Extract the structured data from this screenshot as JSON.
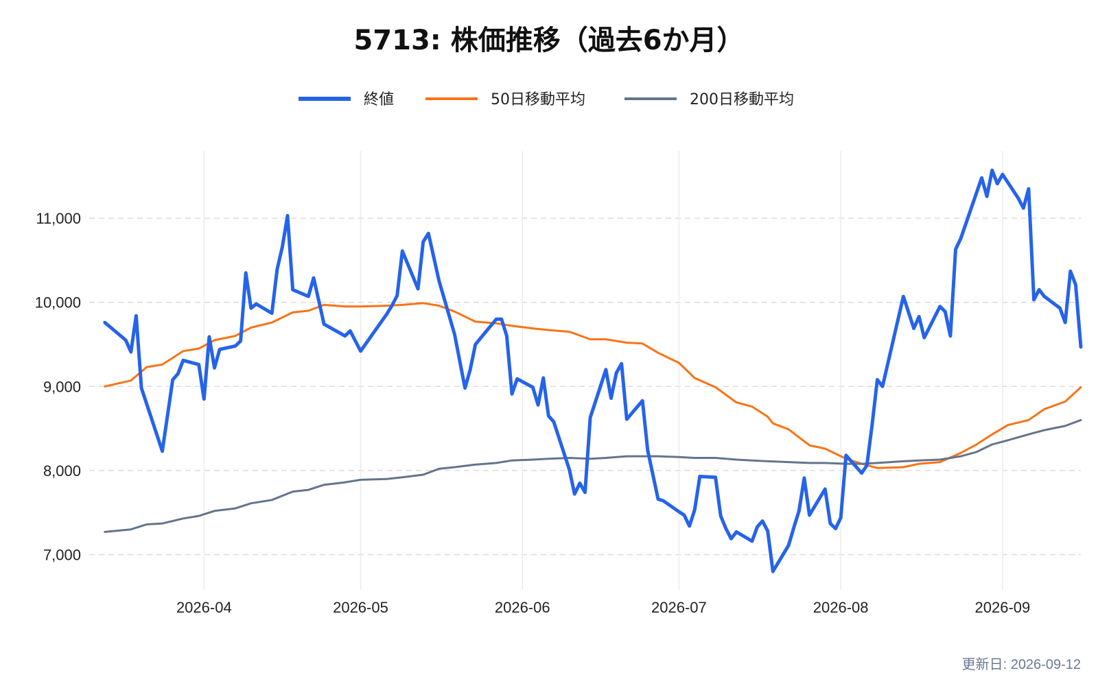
{
  "chart_data": {
    "type": "line",
    "title": "5713: 株価推移（過去6か月）",
    "footer": "更新日: 2026-09-12",
    "xlabel": "",
    "ylabel": "",
    "ylim": [
      6580,
      11800
    ],
    "xlim": [
      "2026-03-10",
      "2026-09-16"
    ],
    "grid": "horizontal dashed and vertical at month ticks",
    "legend_position": "top-center",
    "x_ticks": [
      "2026-04-01",
      "2026-05-01",
      "2026-06-01",
      "2026-07-01",
      "2026-08-01",
      "2026-09-01"
    ],
    "x_tick_labels": [
      "2026-04",
      "2026-05",
      "2026-06",
      "2026-07",
      "2026-08",
      "2026-09"
    ],
    "y_ticks": [
      7000,
      8000,
      9000,
      10000,
      11000
    ],
    "y_tick_labels": [
      "7,000",
      "8,000",
      "9,000",
      "10,000",
      "11,000"
    ],
    "series": [
      {
        "name": "終値",
        "color": "#2563eb",
        "width": 5,
        "points": [
          [
            "2026-03-13",
            9760
          ],
          [
            "2026-03-17",
            9550
          ],
          [
            "2026-03-18",
            9410
          ],
          [
            "2026-03-19",
            9840
          ],
          [
            "2026-03-20",
            8980
          ],
          [
            "2026-03-24",
            8230
          ],
          [
            "2026-03-26",
            9080
          ],
          [
            "2026-03-27",
            9150
          ],
          [
            "2026-03-28",
            9310
          ],
          [
            "2026-03-31",
            9260
          ],
          [
            "2026-04-01",
            8850
          ],
          [
            "2026-04-02",
            9590
          ],
          [
            "2026-04-03",
            9220
          ],
          [
            "2026-04-04",
            9440
          ],
          [
            "2026-04-07",
            9480
          ],
          [
            "2026-04-08",
            9540
          ],
          [
            "2026-04-09",
            10350
          ],
          [
            "2026-04-10",
            9930
          ],
          [
            "2026-04-11",
            9980
          ],
          [
            "2026-04-14",
            9870
          ],
          [
            "2026-04-15",
            10390
          ],
          [
            "2026-04-16",
            10660
          ],
          [
            "2026-04-17",
            11030
          ],
          [
            "2026-04-18",
            10150
          ],
          [
            "2026-04-21",
            10070
          ],
          [
            "2026-04-22",
            10290
          ],
          [
            "2026-04-24",
            9740
          ],
          [
            "2026-04-28",
            9600
          ],
          [
            "2026-04-29",
            9660
          ],
          [
            "2026-05-01",
            9420
          ],
          [
            "2026-05-06",
            9860
          ],
          [
            "2026-05-07",
            9960
          ],
          [
            "2026-05-08",
            10080
          ],
          [
            "2026-05-09",
            10610
          ],
          [
            "2026-05-12",
            10160
          ],
          [
            "2026-05-13",
            10720
          ],
          [
            "2026-05-14",
            10820
          ],
          [
            "2026-05-16",
            10260
          ],
          [
            "2026-05-19",
            9620
          ],
          [
            "2026-05-21",
            8980
          ],
          [
            "2026-05-22",
            9200
          ],
          [
            "2026-05-23",
            9500
          ],
          [
            "2026-05-27",
            9800
          ],
          [
            "2026-05-28",
            9800
          ],
          [
            "2026-05-29",
            9600
          ],
          [
            "2026-05-30",
            8910
          ],
          [
            "2026-05-31",
            9090
          ],
          [
            "2026-06-03",
            8990
          ],
          [
            "2026-06-04",
            8780
          ],
          [
            "2026-06-05",
            9100
          ],
          [
            "2026-06-06",
            8650
          ],
          [
            "2026-06-07",
            8580
          ],
          [
            "2026-06-10",
            8010
          ],
          [
            "2026-06-11",
            7720
          ],
          [
            "2026-06-12",
            7850
          ],
          [
            "2026-06-13",
            7740
          ],
          [
            "2026-06-14",
            8630
          ],
          [
            "2026-06-17",
            9200
          ],
          [
            "2026-06-18",
            8860
          ],
          [
            "2026-06-19",
            9160
          ],
          [
            "2026-06-20",
            9270
          ],
          [
            "2026-06-21",
            8610
          ],
          [
            "2026-06-24",
            8830
          ],
          [
            "2026-06-25",
            8240
          ],
          [
            "2026-06-27",
            7660
          ],
          [
            "2026-06-28",
            7640
          ],
          [
            "2026-07-01",
            7510
          ],
          [
            "2026-07-02",
            7470
          ],
          [
            "2026-07-03",
            7340
          ],
          [
            "2026-07-04",
            7530
          ],
          [
            "2026-07-05",
            7930
          ],
          [
            "2026-07-08",
            7920
          ],
          [
            "2026-07-09",
            7460
          ],
          [
            "2026-07-10",
            7310
          ],
          [
            "2026-07-11",
            7190
          ],
          [
            "2026-07-12",
            7270
          ],
          [
            "2026-07-15",
            7160
          ],
          [
            "2026-07-16",
            7330
          ],
          [
            "2026-07-17",
            7400
          ],
          [
            "2026-07-18",
            7280
          ],
          [
            "2026-07-19",
            6800
          ],
          [
            "2026-07-22",
            7110
          ],
          [
            "2026-07-23",
            7320
          ],
          [
            "2026-07-24",
            7520
          ],
          [
            "2026-07-25",
            7910
          ],
          [
            "2026-07-26",
            7470
          ],
          [
            "2026-07-29",
            7780
          ],
          [
            "2026-07-30",
            7370
          ],
          [
            "2026-07-31",
            7310
          ],
          [
            "2026-08-01",
            7440
          ],
          [
            "2026-08-02",
            8180
          ],
          [
            "2026-08-05",
            7970
          ],
          [
            "2026-08-06",
            8060
          ],
          [
            "2026-08-07",
            8540
          ],
          [
            "2026-08-08",
            9080
          ],
          [
            "2026-08-09",
            9000
          ],
          [
            "2026-08-13",
            10070
          ],
          [
            "2026-08-15",
            9690
          ],
          [
            "2026-08-16",
            9830
          ],
          [
            "2026-08-17",
            9580
          ],
          [
            "2026-08-20",
            9950
          ],
          [
            "2026-08-21",
            9890
          ],
          [
            "2026-08-22",
            9600
          ],
          [
            "2026-08-23",
            10630
          ],
          [
            "2026-08-24",
            10760
          ],
          [
            "2026-08-28",
            11480
          ],
          [
            "2026-08-29",
            11260
          ],
          [
            "2026-08-30",
            11570
          ],
          [
            "2026-08-31",
            11410
          ],
          [
            "2026-09-01",
            11520
          ],
          [
            "2026-09-04",
            11240
          ],
          [
            "2026-09-05",
            11120
          ],
          [
            "2026-09-06",
            11350
          ],
          [
            "2026-09-07",
            10030
          ],
          [
            "2026-09-08",
            10150
          ],
          [
            "2026-09-09",
            10070
          ],
          [
            "2026-09-12",
            9930
          ],
          [
            "2026-09-13",
            9760
          ],
          [
            "2026-09-14",
            10370
          ],
          [
            "2026-09-15",
            10210
          ],
          [
            "2026-09-16",
            9470
          ]
        ]
      },
      {
        "name": "50日移動平均",
        "color": "#f97316",
        "width": 3,
        "points": [
          [
            "2026-03-13",
            9000
          ],
          [
            "2026-03-18",
            9070
          ],
          [
            "2026-03-21",
            9230
          ],
          [
            "2026-03-24",
            9260
          ],
          [
            "2026-03-28",
            9420
          ],
          [
            "2026-03-31",
            9450
          ],
          [
            "2026-04-03",
            9550
          ],
          [
            "2026-04-07",
            9600
          ],
          [
            "2026-04-10",
            9700
          ],
          [
            "2026-04-14",
            9760
          ],
          [
            "2026-04-18",
            9880
          ],
          [
            "2026-04-21",
            9900
          ],
          [
            "2026-04-24",
            9970
          ],
          [
            "2026-04-28",
            9950
          ],
          [
            "2026-05-01",
            9950
          ],
          [
            "2026-05-06",
            9960
          ],
          [
            "2026-05-09",
            9970
          ],
          [
            "2026-05-13",
            9990
          ],
          [
            "2026-05-16",
            9960
          ],
          [
            "2026-05-19",
            9890
          ],
          [
            "2026-05-23",
            9770
          ],
          [
            "2026-05-27",
            9750
          ],
          [
            "2026-05-30",
            9720
          ],
          [
            "2026-06-03",
            9690
          ],
          [
            "2026-06-06",
            9670
          ],
          [
            "2026-06-10",
            9650
          ],
          [
            "2026-06-14",
            9560
          ],
          [
            "2026-06-17",
            9560
          ],
          [
            "2026-06-21",
            9520
          ],
          [
            "2026-06-24",
            9510
          ],
          [
            "2026-06-27",
            9400
          ],
          [
            "2026-07-01",
            9280
          ],
          [
            "2026-07-04",
            9100
          ],
          [
            "2026-07-08",
            8990
          ],
          [
            "2026-07-12",
            8810
          ],
          [
            "2026-07-15",
            8760
          ],
          [
            "2026-07-18",
            8640
          ],
          [
            "2026-07-19",
            8560
          ],
          [
            "2026-07-22",
            8490
          ],
          [
            "2026-07-26",
            8300
          ],
          [
            "2026-07-29",
            8260
          ],
          [
            "2026-08-02",
            8140
          ],
          [
            "2026-08-05",
            8080
          ],
          [
            "2026-08-08",
            8030
          ],
          [
            "2026-08-13",
            8040
          ],
          [
            "2026-08-16",
            8080
          ],
          [
            "2026-08-20",
            8100
          ],
          [
            "2026-08-24",
            8210
          ],
          [
            "2026-08-27",
            8310
          ],
          [
            "2026-08-30",
            8430
          ],
          [
            "2026-09-02",
            8540
          ],
          [
            "2026-09-06",
            8600
          ],
          [
            "2026-09-09",
            8730
          ],
          [
            "2026-09-13",
            8820
          ],
          [
            "2026-09-16",
            8990
          ]
        ]
      },
      {
        "name": "200日移動平均",
        "color": "#64748b",
        "width": 3,
        "points": [
          [
            "2026-03-13",
            7270
          ],
          [
            "2026-03-18",
            7300
          ],
          [
            "2026-03-21",
            7360
          ],
          [
            "2026-03-24",
            7370
          ],
          [
            "2026-03-28",
            7430
          ],
          [
            "2026-03-31",
            7460
          ],
          [
            "2026-04-03",
            7520
          ],
          [
            "2026-04-07",
            7550
          ],
          [
            "2026-04-10",
            7610
          ],
          [
            "2026-04-14",
            7650
          ],
          [
            "2026-04-18",
            7750
          ],
          [
            "2026-04-21",
            7770
          ],
          [
            "2026-04-24",
            7830
          ],
          [
            "2026-04-28",
            7860
          ],
          [
            "2026-05-01",
            7890
          ],
          [
            "2026-05-06",
            7900
          ],
          [
            "2026-05-09",
            7920
          ],
          [
            "2026-05-13",
            7950
          ],
          [
            "2026-05-16",
            8020
          ],
          [
            "2026-05-19",
            8040
          ],
          [
            "2026-05-23",
            8070
          ],
          [
            "2026-05-27",
            8090
          ],
          [
            "2026-05-30",
            8120
          ],
          [
            "2026-06-03",
            8130
          ],
          [
            "2026-06-06",
            8140
          ],
          [
            "2026-06-10",
            8150
          ],
          [
            "2026-06-14",
            8140
          ],
          [
            "2026-06-17",
            8150
          ],
          [
            "2026-06-21",
            8170
          ],
          [
            "2026-06-24",
            8170
          ],
          [
            "2026-06-27",
            8170
          ],
          [
            "2026-07-01",
            8160
          ],
          [
            "2026-07-04",
            8150
          ],
          [
            "2026-07-08",
            8150
          ],
          [
            "2026-07-12",
            8130
          ],
          [
            "2026-07-15",
            8120
          ],
          [
            "2026-07-18",
            8110
          ],
          [
            "2026-07-22",
            8100
          ],
          [
            "2026-07-26",
            8090
          ],
          [
            "2026-07-29",
            8090
          ],
          [
            "2026-08-02",
            8080
          ],
          [
            "2026-08-05",
            8080
          ],
          [
            "2026-08-08",
            8090
          ],
          [
            "2026-08-13",
            8110
          ],
          [
            "2026-08-16",
            8120
          ],
          [
            "2026-08-20",
            8130
          ],
          [
            "2026-08-24",
            8170
          ],
          [
            "2026-08-27",
            8220
          ],
          [
            "2026-08-30",
            8310
          ],
          [
            "2026-09-02",
            8360
          ],
          [
            "2026-09-06",
            8430
          ],
          [
            "2026-09-09",
            8480
          ],
          [
            "2026-09-13",
            8530
          ],
          [
            "2026-09-16",
            8600
          ]
        ]
      }
    ]
  }
}
